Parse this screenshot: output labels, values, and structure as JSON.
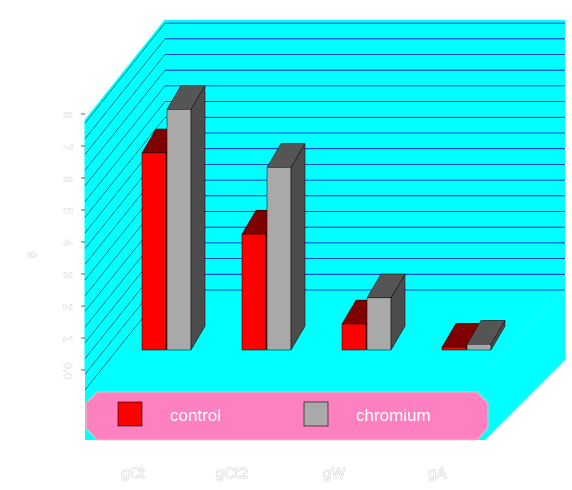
{
  "chart_data": {
    "type": "bar",
    "categories": [
      "gCt",
      "gCt2",
      "gW",
      "gA"
    ],
    "series": [
      {
        "name": "control",
        "color": "#ff0000",
        "values": [
          6.8,
          4.0,
          0.9,
          0.1
        ]
      },
      {
        "name": "chromium",
        "color": "#a9a9a9",
        "values": [
          8.3,
          6.3,
          1.8,
          0.2
        ]
      }
    ],
    "y_ticks": [
      "0.0",
      "1",
      "2",
      "3",
      "4",
      "5",
      "6",
      "7",
      "8"
    ],
    "ylabel": "g",
    "ylim": [
      0,
      10.3
    ],
    "grid": true,
    "legend_position": "bottom",
    "colors": {
      "wall": "#00ffff",
      "gridline": "#0000cc",
      "legend_box": "#ff80c0"
    }
  }
}
